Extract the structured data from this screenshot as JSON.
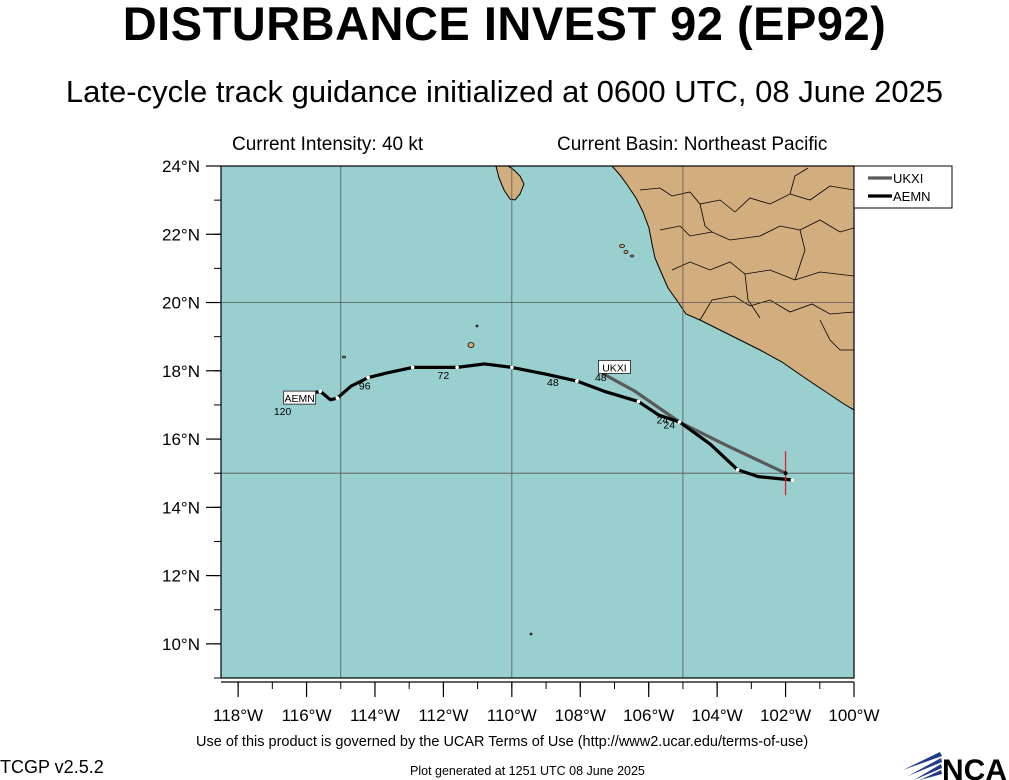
{
  "header": {
    "title": "DISTURBANCE INVEST 92 (EP92)",
    "subtitle": "Late-cycle track guidance initialized at 0600 UTC, 08 June 2025",
    "current_intensity": "Current Intensity: 40 kt",
    "current_basin": "Current Basin: Northeast Pacific"
  },
  "footer": {
    "terms": "Use of this product is governed by the UCAR Terms of Use (http://www2.ucar.edu/terms-of-use)",
    "version": "TCGP v2.5.2",
    "plot_generated": "Plot generated at 1251 UTC   08 June 2025",
    "logo_text": "NCAR"
  },
  "colors": {
    "ocean": "#99cfcf",
    "land": "#d2ae7e",
    "UKXI": "#5a5a5a",
    "AEMN": "#000000",
    "current_position_marker": "#e02020"
  },
  "map": {
    "lon_range": [
      -118.5,
      -100
    ],
    "lat_range": [
      9,
      24
    ],
    "x_ticks": [
      {
        "lon": -118,
        "label": "118°W"
      },
      {
        "lon": -116,
        "label": "116°W"
      },
      {
        "lon": -114,
        "label": "114°W"
      },
      {
        "lon": -112,
        "label": "112°W"
      },
      {
        "lon": -110,
        "label": "110°W"
      },
      {
        "lon": -108,
        "label": "108°W"
      },
      {
        "lon": -106,
        "label": "106°W"
      },
      {
        "lon": -104,
        "label": "104°W"
      },
      {
        "lon": -102,
        "label": "102°W"
      },
      {
        "lon": -100,
        "label": "100°W"
      }
    ],
    "y_ticks": [
      {
        "lat": 10,
        "label": "10°N"
      },
      {
        "lat": 12,
        "label": "12°N"
      },
      {
        "lat": 14,
        "label": "14°N"
      },
      {
        "lat": 16,
        "label": "16°N"
      },
      {
        "lat": 18,
        "label": "18°N"
      },
      {
        "lat": 20,
        "label": "20°N"
      },
      {
        "lat": 22,
        "label": "22°N"
      },
      {
        "lat": 24,
        "label": "24°N"
      }
    ],
    "gridlines_lon": [
      -115,
      -110,
      -105,
      -100
    ],
    "gridlines_lat": [
      15,
      20
    ],
    "current_position": {
      "lon": -102.0,
      "lat": 15.0
    }
  },
  "legend": {
    "placement": "right of map, top",
    "entries": [
      {
        "name": "UKXI",
        "color": "#5a5a5a"
      },
      {
        "name": "AEMN",
        "color": "#000000"
      }
    ]
  },
  "tracks": [
    {
      "model": "UKXI",
      "color": "#5a5a5a",
      "points": [
        [
          -102.0,
          15.0
        ],
        [
          -103.8,
          15.85
        ],
        [
          -105.1,
          16.5
        ],
        [
          -106.4,
          17.4
        ],
        [
          -107.4,
          17.95
        ]
      ],
      "hour_labels": [
        {
          "lon": -105.6,
          "lat": 16.6,
          "hour": "24"
        },
        {
          "lon": -107.4,
          "lat": 17.85,
          "hour": "48"
        }
      ],
      "name_tag": {
        "lon": -107.0,
        "lat": 18.1,
        "text": "UKXI"
      }
    },
    {
      "model": "AEMN",
      "color": "#000000",
      "points": [
        [
          -101.8,
          14.8
        ],
        [
          -102.8,
          14.9
        ],
        [
          -103.4,
          15.1
        ],
        [
          -104.2,
          15.85
        ],
        [
          -105.1,
          16.5
        ],
        [
          -105.7,
          16.7
        ],
        [
          -106.3,
          17.1
        ],
        [
          -107.3,
          17.4
        ],
        [
          -108.1,
          17.7
        ],
        [
          -109.0,
          17.9
        ],
        [
          -110.0,
          18.1
        ],
        [
          -110.8,
          18.2
        ],
        [
          -111.6,
          18.1
        ],
        [
          -112.2,
          18.1
        ],
        [
          -112.9,
          18.1
        ],
        [
          -113.6,
          17.95
        ],
        [
          -114.2,
          17.8
        ],
        [
          -114.7,
          17.55
        ],
        [
          -115.1,
          17.2
        ],
        [
          -115.3,
          17.15
        ],
        [
          -115.6,
          17.4
        ],
        [
          -116.0,
          17.3
        ],
        [
          -116.6,
          17.2
        ]
      ],
      "hour_labels": [
        {
          "lon": -105.4,
          "lat": 16.45,
          "hour": "24"
        },
        {
          "lon": -108.8,
          "lat": 17.7,
          "hour": "48"
        },
        {
          "lon": -112.0,
          "lat": 17.9,
          "hour": "72"
        },
        {
          "lon": -114.3,
          "lat": 17.6,
          "hour": "96"
        },
        {
          "lon": -116.7,
          "lat": 16.85,
          "hour": "120"
        }
      ],
      "name_tag": {
        "lon": -116.2,
        "lat": 17.2,
        "text": "AEMN"
      }
    }
  ]
}
